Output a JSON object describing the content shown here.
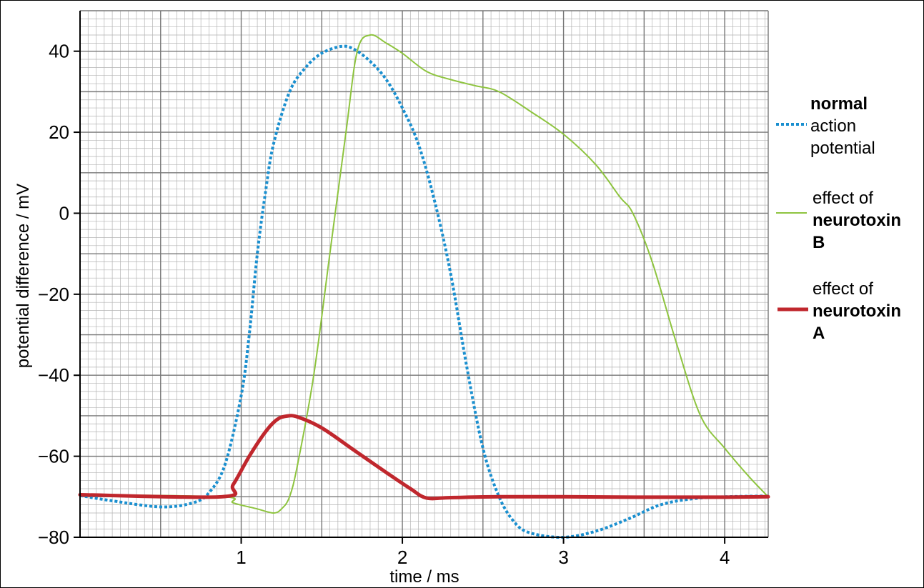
{
  "chart_data": {
    "type": "line",
    "title": "",
    "xlabel": "time / ms",
    "ylabel": "potential difference / mV",
    "xlim": [
      0,
      4.27
    ],
    "ylim": [
      -80,
      50
    ],
    "x_ticks": [
      1,
      2,
      3,
      4
    ],
    "x_tick_labels": [
      "1",
      "2",
      "3",
      "4"
    ],
    "y_ticks": [
      -80,
      -60,
      -40,
      -20,
      0,
      20,
      40
    ],
    "y_tick_labels": [
      "−80",
      "−60",
      "−40",
      "−20",
      "0",
      "20",
      "40"
    ],
    "grid": true,
    "legend_position": "right",
    "series": [
      {
        "key": "normal",
        "legend": {
          "bold": "normal",
          "lines": [
            "action",
            "potential"
          ]
        },
        "color": "#1a8fcf",
        "style": "dotted",
        "points": [
          [
            0,
            -69.7
          ],
          [
            0.2,
            -71
          ],
          [
            0.5,
            -72.5
          ],
          [
            0.7,
            -71.5
          ],
          [
            0.8,
            -69
          ],
          [
            0.9,
            -62
          ],
          [
            1.0,
            -45
          ],
          [
            1.05,
            -30
          ],
          [
            1.1,
            -10
          ],
          [
            1.15,
            5
          ],
          [
            1.2,
            17
          ],
          [
            1.3,
            30
          ],
          [
            1.4,
            36
          ],
          [
            1.5,
            39.5
          ],
          [
            1.62,
            41.2
          ],
          [
            1.7,
            40.5
          ],
          [
            1.8,
            37.5
          ],
          [
            1.9,
            33
          ],
          [
            2.0,
            26
          ],
          [
            2.1,
            17
          ],
          [
            2.2,
            3
          ],
          [
            2.3,
            -15
          ],
          [
            2.4,
            -38
          ],
          [
            2.5,
            -58
          ],
          [
            2.6,
            -70
          ],
          [
            2.7,
            -76.5
          ],
          [
            2.8,
            -79
          ],
          [
            3.0,
            -80
          ],
          [
            3.2,
            -78.5
          ],
          [
            3.4,
            -75.5
          ],
          [
            3.6,
            -72
          ],
          [
            3.8,
            -70.5
          ],
          [
            4.0,
            -70
          ],
          [
            4.27,
            -69.8
          ]
        ]
      },
      {
        "key": "neurotoxin_b",
        "legend": {
          "lines": [
            "effect of"
          ],
          "bold": [
            "neurotoxin",
            "B"
          ]
        },
        "color": "#8ec43f",
        "style": "solid",
        "points": [
          [
            0,
            -69.5
          ],
          [
            0.88,
            -70
          ],
          [
            0.95,
            -71.5
          ],
          [
            1.1,
            -73
          ],
          [
            1.2,
            -74
          ],
          [
            1.25,
            -73
          ],
          [
            1.3,
            -70
          ],
          [
            1.35,
            -62
          ],
          [
            1.45,
            -40
          ],
          [
            1.55,
            -10
          ],
          [
            1.65,
            20
          ],
          [
            1.72,
            40
          ],
          [
            1.8,
            44
          ],
          [
            1.9,
            42
          ],
          [
            2.0,
            39.5
          ],
          [
            2.15,
            35
          ],
          [
            2.3,
            33
          ],
          [
            2.45,
            31.5
          ],
          [
            2.6,
            30
          ],
          [
            2.8,
            25
          ],
          [
            3.0,
            19.5
          ],
          [
            3.2,
            12
          ],
          [
            3.35,
            4
          ],
          [
            3.43,
            0
          ],
          [
            3.55,
            -12
          ],
          [
            3.7,
            -32
          ],
          [
            3.85,
            -50
          ],
          [
            4.0,
            -58
          ],
          [
            4.15,
            -65
          ],
          [
            4.27,
            -70
          ]
        ]
      },
      {
        "key": "neurotoxin_a",
        "legend": {
          "lines": [
            "effect of"
          ],
          "bold": [
            "neurotoxin",
            "A"
          ]
        },
        "color": "#c0272d",
        "style": "thick",
        "points": [
          [
            0,
            -69.5
          ],
          [
            0.88,
            -70
          ],
          [
            0.95,
            -67
          ],
          [
            1.05,
            -60
          ],
          [
            1.15,
            -54
          ],
          [
            1.22,
            -51
          ],
          [
            1.28,
            -50.1
          ],
          [
            1.35,
            -50.3
          ],
          [
            1.5,
            -53
          ],
          [
            1.7,
            -58.5
          ],
          [
            1.9,
            -64
          ],
          [
            2.05,
            -68
          ],
          [
            2.15,
            -70.3
          ],
          [
            2.3,
            -70.2
          ],
          [
            2.6,
            -70
          ],
          [
            3.0,
            -70
          ],
          [
            3.5,
            -70.1
          ],
          [
            4.0,
            -70.1
          ],
          [
            4.27,
            -70
          ]
        ]
      }
    ]
  }
}
